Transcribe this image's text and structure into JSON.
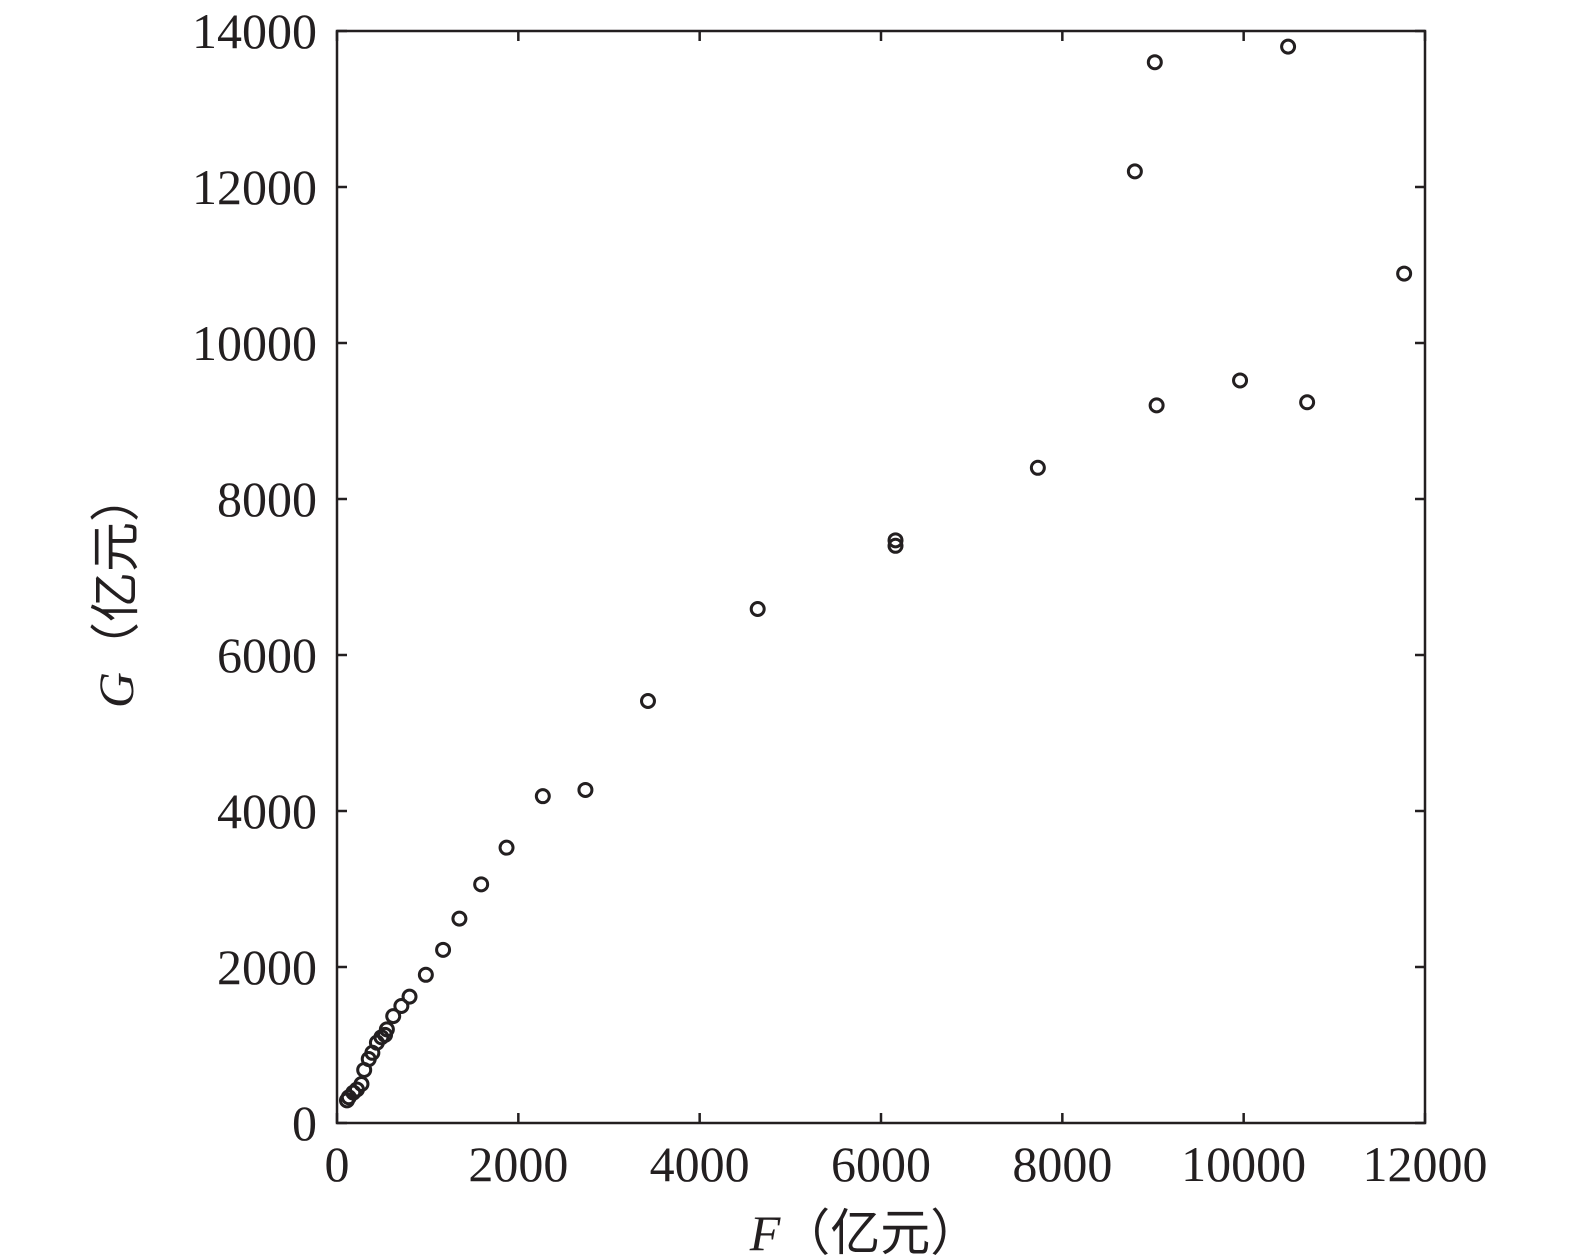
{
  "chart_data": {
    "type": "scatter",
    "xlabel": {
      "var": "F",
      "unit": "（亿元）"
    },
    "ylabel": {
      "var": "G",
      "unit": "（亿元）"
    },
    "xlim": [
      0,
      12000
    ],
    "ylim": [
      0,
      14000
    ],
    "xticks": [
      0,
      2000,
      4000,
      6000,
      8000,
      10000,
      12000
    ],
    "yticks": [
      0,
      2000,
      4000,
      6000,
      8000,
      10000,
      12000,
      14000
    ],
    "grid": false,
    "legend": "none",
    "marker": "open-circle",
    "color": "#231f20",
    "points": [
      [
        110,
        290
      ],
      [
        130,
        330
      ],
      [
        180,
        390
      ],
      [
        220,
        430
      ],
      [
        270,
        500
      ],
      [
        300,
        680
      ],
      [
        350,
        820
      ],
      [
        390,
        900
      ],
      [
        440,
        1030
      ],
      [
        490,
        1100
      ],
      [
        530,
        1130
      ],
      [
        550,
        1200
      ],
      [
        620,
        1370
      ],
      [
        710,
        1500
      ],
      [
        800,
        1620
      ],
      [
        980,
        1900
      ],
      [
        1170,
        2220
      ],
      [
        1350,
        2620
      ],
      [
        1590,
        3060
      ],
      [
        1870,
        3530
      ],
      [
        2270,
        4190
      ],
      [
        2740,
        4270
      ],
      [
        3430,
        5410
      ],
      [
        4640,
        6590
      ],
      [
        6160,
        7400
      ],
      [
        6160,
        7470
      ],
      [
        7730,
        8400
      ],
      [
        8800,
        12200
      ],
      [
        9020,
        13600
      ],
      [
        9040,
        9200
      ],
      [
        9960,
        9520
      ],
      [
        10490,
        13800
      ],
      [
        10700,
        9240
      ],
      [
        11770,
        10890
      ]
    ]
  }
}
